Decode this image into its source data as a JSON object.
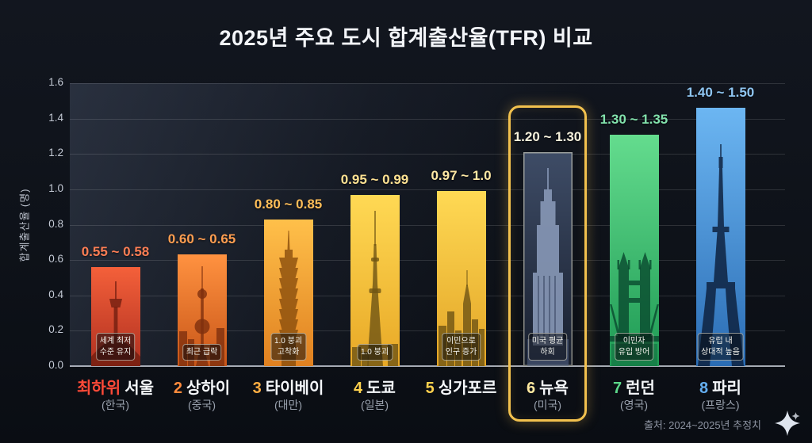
{
  "title": "2025년 주요 도시 합계출산율(TFR) 비교",
  "source_note": "출처: 2024~2025년 추정치",
  "icons": {
    "corner_icon": "four-point-star-sparkle"
  },
  "chart_data": {
    "type": "bar",
    "title": "2025년 주요 도시 합계출산율(TFR) 비교",
    "xlabel": "",
    "ylabel": "합계출산율 (명)",
    "ylim": [
      0,
      1.6
    ],
    "yticks": [
      "0.0",
      "0.2",
      "0.4",
      "0.6",
      "0.8",
      "1.0",
      "1.2",
      "1.4",
      "1.6"
    ],
    "grid": true,
    "legend": "none",
    "highlight_color": "#f2c14e",
    "bars": [
      {
        "rank": "최하위",
        "city": "서울",
        "country": "(한국)",
        "range_label": "0.55 ~ 0.58",
        "range": [
          0.55,
          0.58
        ],
        "value": 0.56,
        "note": "세계 최저\n수준 유지",
        "landmark_icon": "n-seoul-tower-silhouette",
        "highlighted": false,
        "colors": {
          "top": "#f4603a",
          "bottom": "#b03020",
          "label": "#ff7e54",
          "rank": "#ff4a38"
        }
      },
      {
        "rank": "2",
        "city": "상하이",
        "country": "(중국)",
        "range_label": "0.60 ~ 0.65",
        "range": [
          0.6,
          0.65
        ],
        "value": 0.63,
        "note": "최근 급락",
        "landmark_icon": "oriental-pearl-tower-silhouette",
        "highlighted": false,
        "colors": {
          "top": "#ff9240",
          "bottom": "#c85518",
          "label": "#ff9e50",
          "rank": "#ff8a3c"
        }
      },
      {
        "rank": "3",
        "city": "타이베이",
        "country": "(대만)",
        "range_label": "0.80 ~ 0.85",
        "range": [
          0.8,
          0.85
        ],
        "value": 0.83,
        "note": "1.0 붕괴\n고착화",
        "landmark_icon": "taipei-101-silhouette",
        "highlighted": false,
        "colors": {
          "top": "#ffc04a",
          "bottom": "#e08020",
          "label": "#ffbe58",
          "rank": "#ffae42"
        }
      },
      {
        "rank": "4",
        "city": "도쿄",
        "country": "(일본)",
        "range_label": "0.95 ~ 0.99",
        "range": [
          0.95,
          0.99
        ],
        "value": 0.97,
        "note": "1.0 붕괴",
        "landmark_icon": "tokyo-skytree-silhouette",
        "highlighted": false,
        "colors": {
          "top": "#ffd954",
          "bottom": "#e8a826",
          "label": "#ffe292",
          "rank": "#ffd24e"
        }
      },
      {
        "rank": "5",
        "city": "싱가포르",
        "country": "",
        "range_label": "0.97 ~ 1.0",
        "range": [
          0.97,
          1.0
        ],
        "value": 0.99,
        "note": "이민으로\n인구 증가",
        "landmark_icon": "singapore-skyline-silhouette",
        "highlighted": false,
        "colors": {
          "top": "#ffd954",
          "bottom": "#e2a426",
          "label": "#ffe8a4",
          "rank": "#ffd24e"
        }
      },
      {
        "rank": "6",
        "city": "뉴욕",
        "country": "(미국)",
        "range_label": "1.20 ~ 1.30",
        "range": [
          1.2,
          1.3
        ],
        "value": 1.21,
        "note": "미국 평균\n하회",
        "landmark_icon": "empire-state-building-silhouette",
        "highlighted": true,
        "colors": {
          "top": "#3e4c66",
          "bottom": "#181f2e",
          "label": "#f6f1dc",
          "rank": "#ffe9a0"
        }
      },
      {
        "rank": "7",
        "city": "런던",
        "country": "(영국)",
        "range_label": "1.30 ~ 1.35",
        "range": [
          1.3,
          1.35
        ],
        "value": 1.31,
        "note": "이민자\n유입 방어",
        "landmark_icon": "tower-bridge-silhouette",
        "highlighted": false,
        "colors": {
          "top": "#64dc8e",
          "bottom": "#1e9a54",
          "label": "#82e2ac",
          "rank": "#5cd88a"
        }
      },
      {
        "rank": "8",
        "city": "파리",
        "country": "(프랑스)",
        "range_label": "1.40 ~ 1.50",
        "range": [
          1.4,
          1.5
        ],
        "value": 1.46,
        "note": "유럽 내\n상대적 높음",
        "landmark_icon": "eiffel-tower-silhouette",
        "highlighted": false,
        "colors": {
          "top": "#6cb6f2",
          "bottom": "#2a6cb4",
          "label": "#8fc6f2",
          "rank": "#64aef0"
        }
      }
    ]
  }
}
